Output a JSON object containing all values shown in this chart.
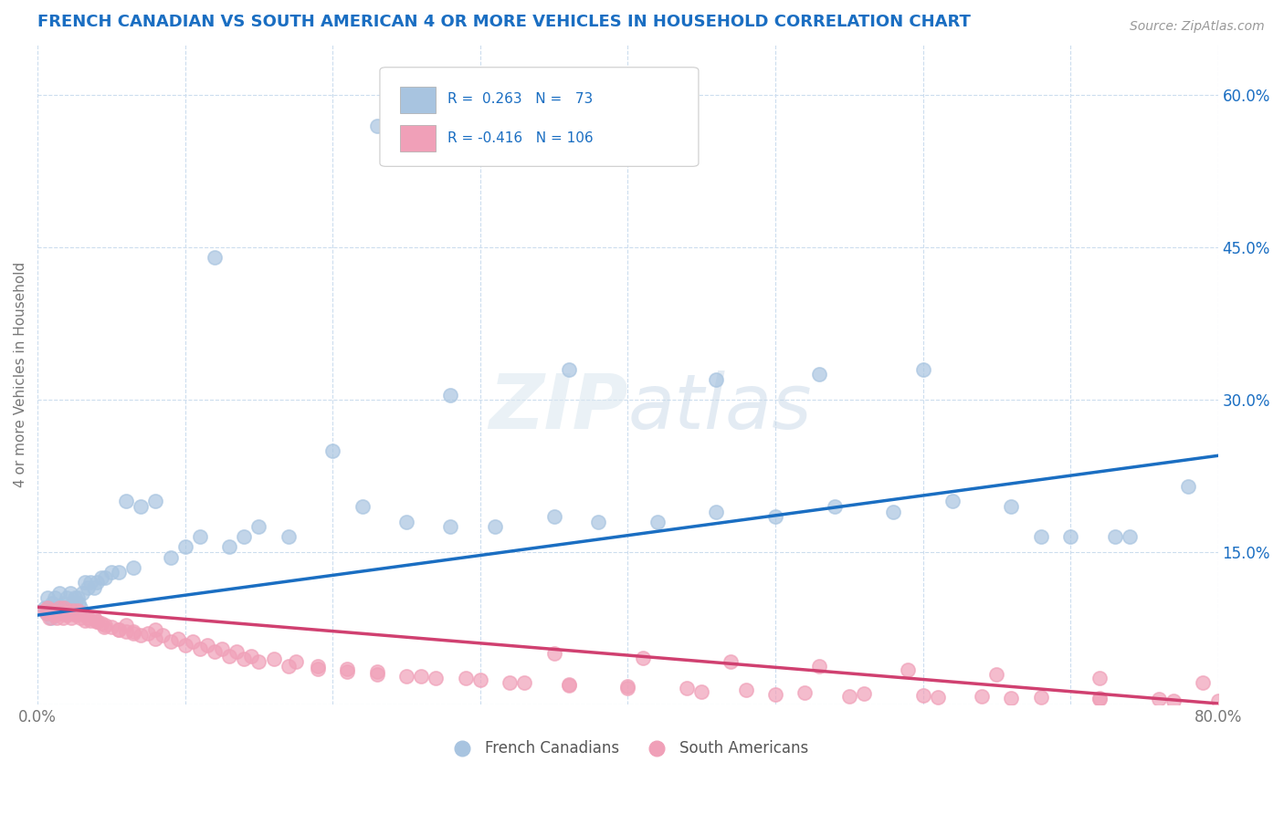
{
  "title": "FRENCH CANADIAN VS SOUTH AMERICAN 4 OR MORE VEHICLES IN HOUSEHOLD CORRELATION CHART",
  "source": "Source: ZipAtlas.com",
  "ylabel": "4 or more Vehicles in Household",
  "xlim": [
    0.0,
    0.8
  ],
  "ylim": [
    0.0,
    0.65
  ],
  "xtick_positions": [
    0.0,
    0.1,
    0.2,
    0.3,
    0.4,
    0.5,
    0.6,
    0.7,
    0.8
  ],
  "xticklabels": [
    "0.0%",
    "",
    "",
    "",
    "",
    "",
    "",
    "",
    "80.0%"
  ],
  "ytick_positions": [
    0.0,
    0.15,
    0.3,
    0.45,
    0.6
  ],
  "ytick_labels": [
    "",
    "15.0%",
    "30.0%",
    "45.0%",
    "60.0%"
  ],
  "blue_color": "#a8c4e0",
  "pink_color": "#f0a0b8",
  "line_blue": "#1a6ec2",
  "line_pink": "#d04070",
  "legend_text_color": "#1a6ec2",
  "title_color": "#1a6ec2",
  "grid_color": "#ccddee",
  "background_color": "#ffffff",
  "watermark": "ZIPatlas",
  "blue_scatter_x": [
    0.005,
    0.006,
    0.007,
    0.008,
    0.009,
    0.01,
    0.011,
    0.012,
    0.013,
    0.014,
    0.015,
    0.016,
    0.017,
    0.018,
    0.019,
    0.02,
    0.021,
    0.022,
    0.023,
    0.024,
    0.025,
    0.026,
    0.027,
    0.028,
    0.029,
    0.03,
    0.032,
    0.034,
    0.036,
    0.038,
    0.04,
    0.043,
    0.046,
    0.05,
    0.055,
    0.06,
    0.065,
    0.07,
    0.08,
    0.09,
    0.1,
    0.11,
    0.12,
    0.13,
    0.14,
    0.15,
    0.17,
    0.2,
    0.22,
    0.25,
    0.28,
    0.31,
    0.35,
    0.38,
    0.42,
    0.46,
    0.5,
    0.54,
    0.58,
    0.62,
    0.66,
    0.7,
    0.74,
    0.78,
    0.23,
    0.28,
    0.36,
    0.46,
    0.53,
    0.6,
    0.68,
    0.73
  ],
  "blue_scatter_y": [
    0.095,
    0.09,
    0.105,
    0.095,
    0.085,
    0.1,
    0.095,
    0.105,
    0.09,
    0.095,
    0.11,
    0.095,
    0.09,
    0.1,
    0.095,
    0.105,
    0.095,
    0.11,
    0.095,
    0.1,
    0.105,
    0.095,
    0.105,
    0.1,
    0.095,
    0.11,
    0.12,
    0.115,
    0.12,
    0.115,
    0.12,
    0.125,
    0.125,
    0.13,
    0.13,
    0.2,
    0.135,
    0.195,
    0.2,
    0.145,
    0.155,
    0.165,
    0.44,
    0.155,
    0.165,
    0.175,
    0.165,
    0.25,
    0.195,
    0.18,
    0.175,
    0.175,
    0.185,
    0.18,
    0.18,
    0.19,
    0.185,
    0.195,
    0.19,
    0.2,
    0.195,
    0.165,
    0.165,
    0.215,
    0.57,
    0.305,
    0.33,
    0.32,
    0.325,
    0.33,
    0.165,
    0.165
  ],
  "pink_scatter_x": [
    0.005,
    0.006,
    0.007,
    0.008,
    0.009,
    0.01,
    0.011,
    0.012,
    0.013,
    0.014,
    0.015,
    0.016,
    0.017,
    0.018,
    0.019,
    0.02,
    0.021,
    0.022,
    0.023,
    0.024,
    0.025,
    0.026,
    0.027,
    0.028,
    0.029,
    0.03,
    0.032,
    0.034,
    0.036,
    0.038,
    0.04,
    0.043,
    0.046,
    0.05,
    0.055,
    0.06,
    0.065,
    0.07,
    0.08,
    0.09,
    0.1,
    0.11,
    0.12,
    0.13,
    0.14,
    0.15,
    0.17,
    0.19,
    0.21,
    0.23,
    0.25,
    0.27,
    0.3,
    0.33,
    0.36,
    0.4,
    0.44,
    0.48,
    0.52,
    0.56,
    0.6,
    0.64,
    0.68,
    0.72,
    0.76,
    0.8,
    0.045,
    0.055,
    0.065,
    0.075,
    0.085,
    0.095,
    0.105,
    0.115,
    0.125,
    0.135,
    0.145,
    0.16,
    0.175,
    0.19,
    0.21,
    0.23,
    0.26,
    0.29,
    0.32,
    0.36,
    0.4,
    0.45,
    0.5,
    0.55,
    0.61,
    0.66,
    0.72,
    0.77,
    0.81,
    0.35,
    0.41,
    0.47,
    0.53,
    0.59,
    0.65,
    0.72,
    0.79,
    0.83,
    0.04,
    0.06,
    0.08
  ],
  "pink_scatter_y": [
    0.093,
    0.09,
    0.095,
    0.085,
    0.092,
    0.093,
    0.09,
    0.088,
    0.085,
    0.09,
    0.095,
    0.09,
    0.085,
    0.095,
    0.09,
    0.088,
    0.093,
    0.09,
    0.085,
    0.093,
    0.09,
    0.088,
    0.093,
    0.09,
    0.085,
    0.09,
    0.083,
    0.085,
    0.083,
    0.085,
    0.082,
    0.08,
    0.078,
    0.076,
    0.074,
    0.072,
    0.07,
    0.068,
    0.065,
    0.062,
    0.058,
    0.055,
    0.052,
    0.048,
    0.045,
    0.042,
    0.038,
    0.035,
    0.032,
    0.03,
    0.028,
    0.026,
    0.024,
    0.022,
    0.02,
    0.018,
    0.016,
    0.014,
    0.012,
    0.011,
    0.009,
    0.008,
    0.007,
    0.006,
    0.005,
    0.004,
    0.076,
    0.074,
    0.072,
    0.07,
    0.068,
    0.065,
    0.062,
    0.058,
    0.055,
    0.052,
    0.048,
    0.045,
    0.042,
    0.038,
    0.035,
    0.032,
    0.028,
    0.026,
    0.022,
    0.019,
    0.016,
    0.013,
    0.01,
    0.008,
    0.007,
    0.006,
    0.005,
    0.004,
    0.003,
    0.05,
    0.046,
    0.042,
    0.038,
    0.034,
    0.03,
    0.026,
    0.022,
    0.018,
    0.082,
    0.078,
    0.074
  ],
  "blue_trend_x": [
    0.0,
    0.8
  ],
  "blue_trend_y": [
    0.088,
    0.245
  ],
  "pink_trend_x": [
    0.0,
    0.8
  ],
  "pink_trend_y": [
    0.096,
    0.001
  ]
}
